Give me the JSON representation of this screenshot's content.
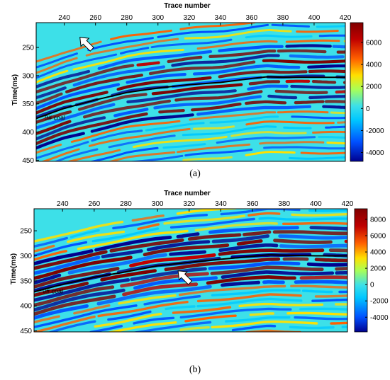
{
  "chart_data": [
    {
      "type": "heatmap",
      "panel_label": "(a)",
      "xlabel": "Trace number",
      "ylabel": "Time(ms)",
      "xlim": [
        222,
        420
      ],
      "ylim": [
        206,
        452
      ],
      "x_ticks": [
        240,
        260,
        280,
        300,
        320,
        340,
        360,
        380,
        400,
        420
      ],
      "y_ticks": [
        250,
        300,
        350,
        400,
        450
      ],
      "y_reversed": true,
      "colorbar": {
        "range": [
          -4800,
          7800
        ],
        "ticks": [
          6000,
          4000,
          2000,
          0,
          -2000,
          -4000
        ]
      },
      "colormap": [
        "#00008f",
        "#0050ff",
        "#00c8ff",
        "#3de0e8",
        "#aaff55",
        "#ffe000",
        "#ff6000",
        "#c00000",
        "#800000"
      ],
      "horizon": {
        "label": "9# coal",
        "x": [
          222,
          240,
          260,
          280,
          300,
          320,
          340,
          360,
          370,
          380,
          400,
          420
        ],
        "y": [
          376,
          358,
          343,
          330,
          322,
          316,
          312,
          305,
          302,
          303,
          303,
          303
        ]
      },
      "arrow": {
        "x": 250,
        "y": 232,
        "direction": "upper-left"
      }
    },
    {
      "type": "heatmap",
      "panel_label": "(b)",
      "xlabel": "Trace number",
      "ylabel": "Time(ms)",
      "xlim": [
        222,
        420
      ],
      "ylim": [
        206,
        452
      ],
      "x_ticks": [
        240,
        260,
        280,
        300,
        320,
        340,
        360,
        380,
        400,
        420
      ],
      "y_ticks": [
        250,
        300,
        350,
        400,
        450
      ],
      "y_reversed": true,
      "colorbar": {
        "range": [
          -5800,
          9300
        ],
        "ticks": [
          8000,
          6000,
          4000,
          2000,
          0,
          -2000,
          -4000
        ]
      },
      "colormap": [
        "#00008f",
        "#0050ff",
        "#00c8ff",
        "#3de0e8",
        "#aaff55",
        "#ffe000",
        "#ff6000",
        "#c00000",
        "#800000"
      ],
      "horizon": {
        "label": "9# coal",
        "x": [
          222,
          240,
          260,
          280,
          300,
          320,
          340,
          360,
          370,
          380,
          400,
          420
        ],
        "y": [
          372,
          357,
          343,
          332,
          320,
          313,
          307,
          301,
          298,
          299,
          300,
          300
        ]
      },
      "arrow": {
        "x": 313,
        "y": 330,
        "direction": "upper-left"
      }
    }
  ]
}
